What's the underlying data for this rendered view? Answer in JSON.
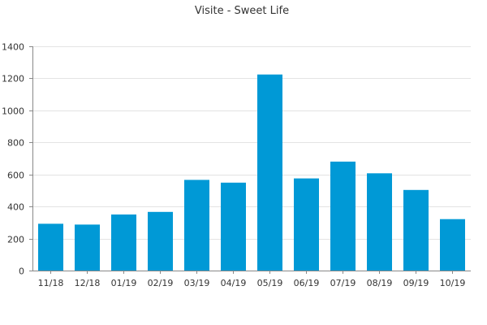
{
  "chart_data": {
    "type": "bar",
    "title": "Visite - Sweet Life",
    "xlabel": "",
    "ylabel": "",
    "categories": [
      "11/18",
      "12/18",
      "01/19",
      "02/19",
      "03/19",
      "04/19",
      "05/19",
      "06/19",
      "07/19",
      "08/19",
      "09/19",
      "10/19"
    ],
    "values": [
      292,
      287,
      350,
      366,
      566,
      549,
      1224,
      575,
      680,
      607,
      503,
      321
    ],
    "ylim": [
      0,
      1400
    ],
    "yticks": [
      0,
      200,
      400,
      600,
      800,
      1000,
      1200,
      1400
    ],
    "grid": true,
    "legend": "none",
    "bar_color": "#0099d6",
    "grid_color": "#e3e3e3",
    "axis_color": "#888888",
    "text_color": "#333333"
  }
}
